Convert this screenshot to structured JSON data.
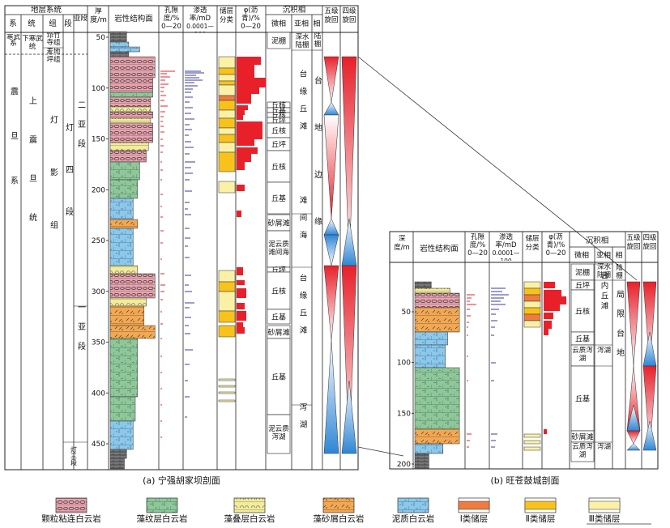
{
  "left": {
    "hdr": {
      "strat_system": "地层系统",
      "sys": "系",
      "series": "统",
      "group": "组",
      "member": "段",
      "submember": "亚段",
      "depth": "厚度/m",
      "lithology": "岩性结构面",
      "porosity": "孔隙度/%",
      "por_range": "0—20",
      "perm": "渗透率/mD",
      "perm_range": "0.0001—100",
      "res_class": "储层分类",
      "asphalt": "φ(沥青)/%",
      "asp_range": "0—20",
      "sed_facies": "沉积相",
      "microfacies": "微相",
      "subfacies": "亚相",
      "facies": "相",
      "cyc5": "五级旋回",
      "cyc4": "四级旋回"
    },
    "strata": {
      "top_sys": "寒武系",
      "top_series": "下寒武统",
      "zhuzhusi": "筇竹寺组",
      "maidiping": "麦地坪组",
      "sinian": "震旦系",
      "upper_sinian": "上震旦统",
      "dengying": "灯影组",
      "deng4": "灯四段",
      "sub2": "二亚段",
      "sub1": "一亚段",
      "deng3": "灯三段"
    },
    "depth_ticks": [
      "50",
      "100",
      "150",
      "200",
      "250",
      "300",
      "350",
      "400",
      "450"
    ],
    "micro": [
      "泥棚",
      "丘核",
      "丘基",
      "丘核",
      "丘坪",
      "丘核",
      "丘坪",
      "丘核",
      "丘基",
      "砂屑滩",
      "泥云质滩间海",
      "丘坪",
      "丘核",
      "丘基",
      "砂屑滩",
      "丘基",
      "泥云质泻湖"
    ],
    "sub": [
      "深水陆棚",
      "台缘丘滩",
      "滩间海",
      "台缘丘滩",
      "泻湖"
    ],
    "facies": [
      "陆棚",
      "台地边缘"
    ],
    "caption": "(a) 宁强胡家坝剖面"
  },
  "right": {
    "hdr": {
      "depth": "深度/m",
      "lithology": "岩性结构面",
      "porosity": "孔隙度/%",
      "por_range": "0—20",
      "perm": "渗透率/mD",
      "perm_range": "0.0001—100",
      "res_class": "储层分类",
      "asphalt": "φ(沥青)/%",
      "asp_range": "0—20",
      "sed_facies": "沉积相",
      "microfacies": "微相",
      "subfacies": "亚相",
      "facies": "相",
      "cyc5": "五级旋回",
      "cyc4": "四级旋回"
    },
    "depth_ticks": [
      "50",
      "100",
      "150",
      "200"
    ],
    "micro": [
      "泥棚",
      "丘坪",
      "丘核",
      "丘基",
      "云质泻湖",
      "丘基",
      "砂屑滩",
      "云质泻湖"
    ],
    "sub": [
      "深水陆棚",
      "台内丘滩",
      "泻湖",
      "泻湖"
    ],
    "facies": [
      "陆棚",
      "局限台地"
    ],
    "caption": "(b) 旺苍鼓城剖面"
  },
  "legend": [
    "颗粒粘连白云岩",
    "藻纹层白云岩",
    "藻叠层白云岩",
    "藻砂屑白云岩",
    "泥质白云岩",
    "Ⅰ类储层",
    "Ⅱ类储层",
    "Ⅲ类储层"
  ],
  "colors": {
    "grain": "#e8a3ae",
    "laminated": "#8fc79b",
    "stromatolite": "#f2ec9a",
    "sandy": "#f0a855",
    "argillaceous": "#8cc8ea",
    "class1": "#f07b3f",
    "class2": "#f8c21a",
    "class3": "#fbf1a6",
    "asphalt": "#e8202a",
    "porosity": "#e8202a",
    "perm": "#3b3b9b"
  }
}
